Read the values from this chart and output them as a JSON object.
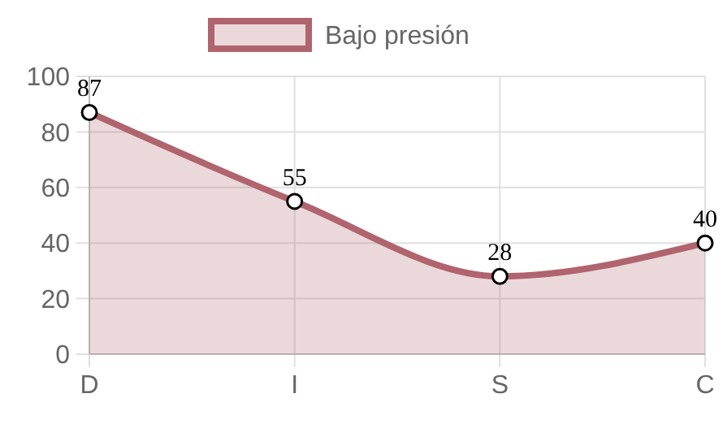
{
  "chart_data": {
    "type": "area",
    "categories": [
      "D",
      "I",
      "S",
      "C"
    ],
    "series": [
      {
        "name": "Bajo presión",
        "color": "#b0646e",
        "values": [
          87,
          55,
          28,
          40
        ]
      }
    ],
    "ylim": [
      0,
      100
    ],
    "yticks": [
      0,
      20,
      40,
      60,
      80,
      100
    ],
    "grid": true,
    "legend": "top",
    "marker": "circle",
    "data_labels": true
  }
}
